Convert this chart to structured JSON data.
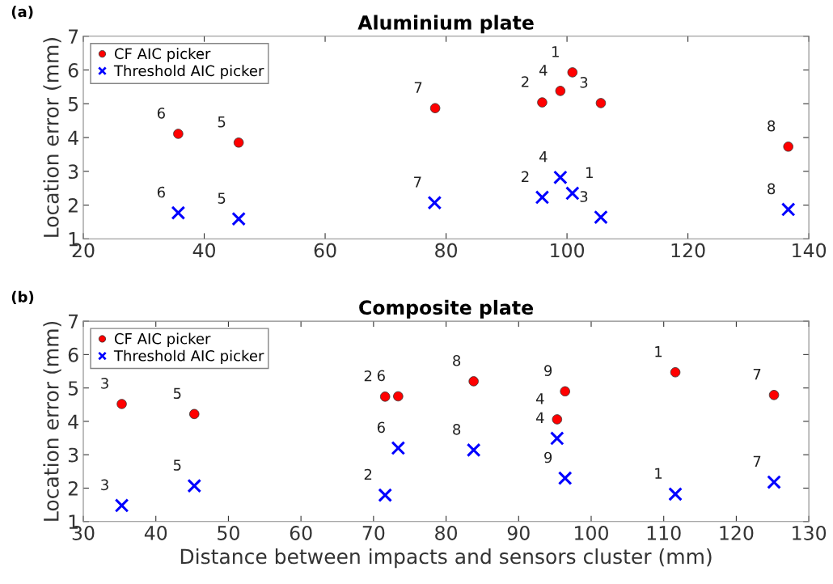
{
  "chart_data": [
    {
      "type": "scatter",
      "title": "Aluminium plate",
      "ylabel": "Location error (mm)",
      "xlim": [
        20,
        140
      ],
      "xticks": [
        20,
        40,
        60,
        80,
        100,
        120,
        140
      ],
      "ylim": [
        1,
        7
      ],
      "yticks": [
        1,
        2,
        3,
        4,
        5,
        6,
        7
      ],
      "grid": false,
      "legend": "top left",
      "series": [
        {
          "name": "CF AIC picker",
          "color": "#ff0000",
          "marker": "circle",
          "x": [
            100.9,
            95.9,
            105.6,
            98.9,
            45.7,
            35.7,
            78.2,
            136.6
          ],
          "values": [
            5.93,
            5.04,
            5.02,
            5.38,
            3.85,
            4.11,
            4.87,
            3.73
          ]
        },
        {
          "name": "Threshold AIC picker",
          "color": "#0000ff",
          "marker": "cross",
          "x": [
            100.9,
            95.9,
            105.6,
            98.9,
            45.7,
            35.7,
            78.1,
            136.6
          ],
          "values": [
            2.35,
            2.23,
            1.64,
            2.82,
            1.59,
            1.77,
            2.07,
            1.87
          ]
        }
      ],
      "annotations": [
        "(a)",
        {
          "text": "1",
          "x": 100.9,
          "y": 5.93
        },
        {
          "text": "2",
          "x": 95.9,
          "y": 5.04
        },
        {
          "text": "3",
          "x": 105.6,
          "y": 5.02
        },
        {
          "text": "4",
          "x": 98.9,
          "y": 5.38
        },
        {
          "text": "5",
          "x": 45.7,
          "y": 3.85
        },
        {
          "text": "6",
          "x": 35.7,
          "y": 4.11
        },
        {
          "text": "7",
          "x": 78.2,
          "y": 4.87
        },
        {
          "text": "8",
          "x": 136.6,
          "y": 3.73
        },
        {
          "text": "1",
          "x": 100.9,
          "y": 2.35
        },
        {
          "text": "2",
          "x": 95.9,
          "y": 2.23
        },
        {
          "text": "3",
          "x": 105.6,
          "y": 1.64
        },
        {
          "text": "4",
          "x": 98.9,
          "y": 2.82
        },
        {
          "text": "5",
          "x": 45.7,
          "y": 1.59
        },
        {
          "text": "6",
          "x": 35.7,
          "y": 1.77
        },
        {
          "text": "7",
          "x": 78.1,
          "y": 2.07
        },
        {
          "text": "8",
          "x": 136.6,
          "y": 1.87
        }
      ]
    },
    {
      "type": "scatter",
      "title": "Composite plate",
      "xlabel": "Distance between impacts and sensors cluster (mm)",
      "ylabel": "Location error (mm)",
      "xlim": [
        30,
        130
      ],
      "xticks": [
        30,
        40,
        50,
        60,
        70,
        80,
        90,
        100,
        110,
        120,
        130
      ],
      "ylim": [
        1,
        7
      ],
      "yticks": [
        1,
        2,
        3,
        4,
        5,
        6,
        7
      ],
      "grid": false,
      "legend": "top left",
      "series": [
        {
          "name": "CF AIC picker",
          "color": "#ff0000",
          "marker": "circle",
          "x": [
            111.6,
            71.6,
            35.3,
            95.3,
            45.3,
            73.4,
            125.2,
            83.8,
            96.4
          ],
          "values": [
            5.47,
            4.74,
            4.52,
            4.06,
            4.22,
            4.75,
            4.79,
            5.2,
            4.9
          ]
        },
        {
          "name": "Threshold AIC picker",
          "color": "#0000ff",
          "marker": "cross",
          "x": [
            111.6,
            71.6,
            35.3,
            95.3,
            45.3,
            73.4,
            125.2,
            83.8,
            96.4
          ],
          "values": [
            1.82,
            1.79,
            1.48,
            3.49,
            2.07,
            3.2,
            2.18,
            3.14,
            2.3
          ]
        }
      ],
      "annotations": [
        "(b)",
        {
          "text": "1",
          "x": 111.6,
          "y": 5.47
        },
        {
          "text": "2",
          "x": 71.6,
          "y": 4.74
        },
        {
          "text": "3",
          "x": 35.3,
          "y": 4.52
        },
        {
          "text": "4",
          "x": 95.3,
          "y": 4.06
        },
        {
          "text": "5",
          "x": 45.3,
          "y": 4.22
        },
        {
          "text": "6",
          "x": 73.4,
          "y": 4.75
        },
        {
          "text": "7",
          "x": 125.2,
          "y": 4.79
        },
        {
          "text": "8",
          "x": 83.8,
          "y": 5.2
        },
        {
          "text": "9",
          "x": 96.4,
          "y": 4.9
        },
        {
          "text": "1",
          "x": 111.6,
          "y": 1.82
        },
        {
          "text": "2",
          "x": 71.6,
          "y": 1.79
        },
        {
          "text": "3",
          "x": 35.3,
          "y": 1.48
        },
        {
          "text": "4",
          "x": 95.3,
          "y": 3.49
        },
        {
          "text": "5",
          "x": 45.3,
          "y": 2.07
        },
        {
          "text": "6",
          "x": 73.4,
          "y": 3.2
        },
        {
          "text": "7",
          "x": 125.2,
          "y": 2.18
        },
        {
          "text": "8",
          "x": 83.8,
          "y": 3.14
        },
        {
          "text": "9",
          "x": 96.4,
          "y": 2.3
        }
      ]
    }
  ]
}
